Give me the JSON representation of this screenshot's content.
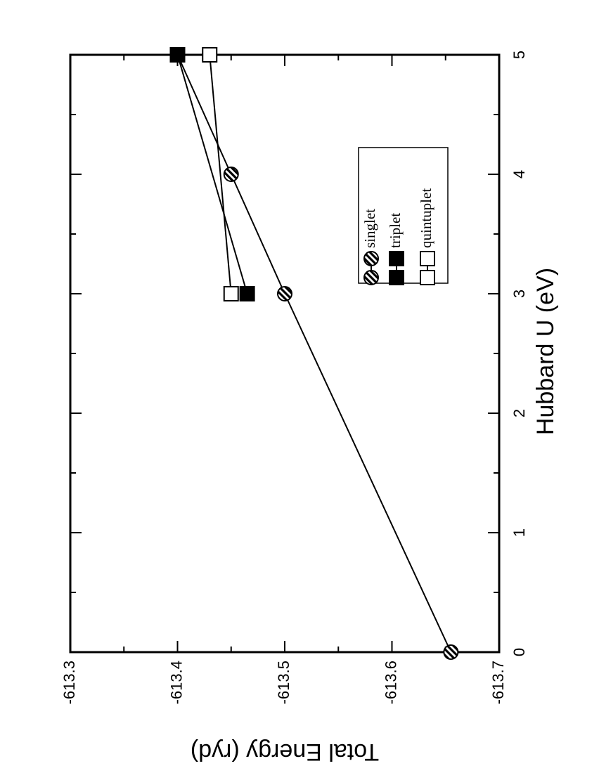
{
  "chart_data": {
    "type": "line",
    "x_label": "Hubbard U (eV)",
    "y_label": "Total Energy (ryd)",
    "xlim": [
      0,
      5
    ],
    "xticks": [
      0,
      1,
      2,
      3,
      4,
      5
    ],
    "xminorticks": [
      0.5,
      1.5,
      2.5,
      3.5,
      4.5
    ],
    "ylim": [
      -613.7,
      -613.3
    ],
    "yticks": [
      -613.7,
      -613.6,
      -613.5,
      -613.4,
      -613.3
    ],
    "yminorticks": [
      -613.65,
      -613.55,
      -613.45,
      -613.35
    ],
    "legend": "lower right",
    "series": [
      {
        "name": "singlet",
        "marker": "hatched-circle",
        "color": "#000000",
        "x": [
          0,
          3,
          4,
          5
        ],
        "values": [
          -613.655,
          -613.5,
          -613.45,
          -613.4
        ]
      },
      {
        "name": "triplet",
        "marker": "filled-square",
        "color": "#000000",
        "x": [
          3,
          5
        ],
        "values": [
          -613.465,
          -613.4
        ]
      },
      {
        "name": "quintuplet",
        "marker": "open-square",
        "color": "#000000",
        "x": [
          3,
          5
        ],
        "values": [
          -613.45,
          -613.43
        ]
      }
    ]
  }
}
